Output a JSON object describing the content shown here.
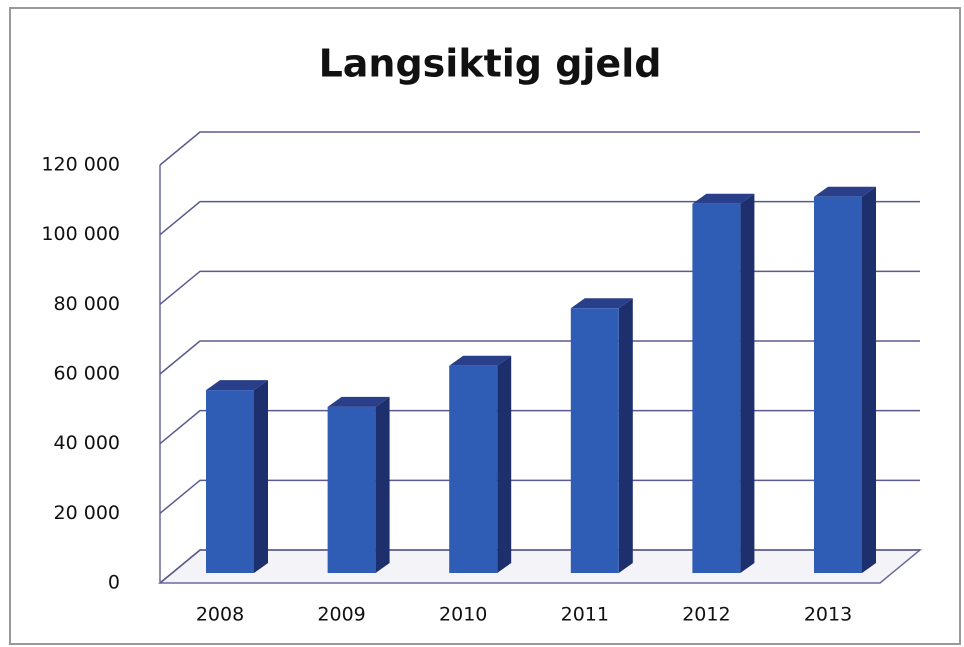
{
  "chart_data": {
    "type": "bar3d",
    "title": "Langsiktig gjeld",
    "categories": [
      "2008",
      "2009",
      "2010",
      "2011",
      "2012",
      "2013"
    ],
    "values": [
      52500,
      47700,
      59500,
      76000,
      106000,
      108000
    ],
    "color": "#2f5cb4",
    "ylim": [
      0,
      120000
    ],
    "yticks": [
      0,
      {
        "value": 20000,
        "label": "20 000"
      },
      {
        "value": 40000,
        "label": "40 000"
      },
      {
        "value": 60000,
        "label": "60 000"
      },
      {
        "value": 80000,
        "label": "80 000"
      },
      {
        "value": 100000,
        "label": "100 000"
      },
      {
        "value": 120000,
        "label": "120 000"
      }
    ],
    "grid": true
  }
}
